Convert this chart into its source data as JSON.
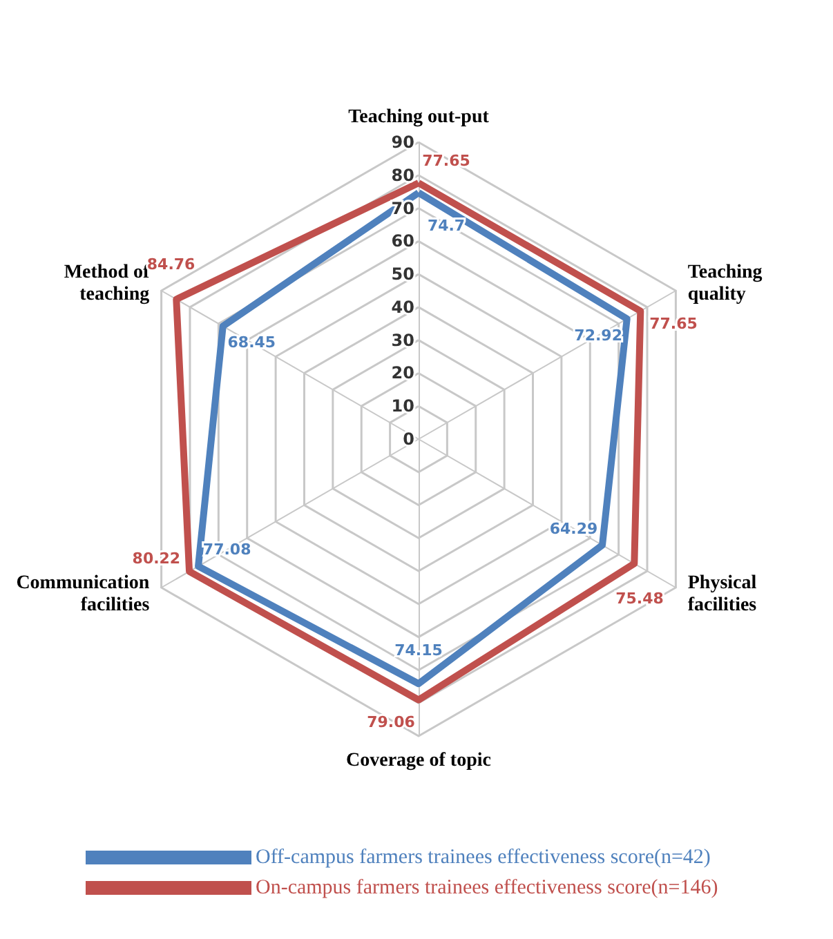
{
  "chart_data": {
    "type": "radar",
    "categories": [
      "Teaching out-put",
      "Teaching quality",
      "Physical facilities",
      "Coverage of topic",
      "Communication facilities",
      "Method of teaching"
    ],
    "ylim": [
      0,
      90
    ],
    "yticks": [
      0,
      10,
      20,
      30,
      40,
      50,
      60,
      70,
      80,
      90
    ],
    "data_labels": true,
    "legend": "bottom",
    "marker": "none",
    "series": [
      {
        "name": "Off-campus farmers trainees effectiveness score(n=42)",
        "color": "#4f81bd",
        "values": [
          74.7,
          72.92,
          64.29,
          74.15,
          77.08,
          68.45
        ]
      },
      {
        "name": "On-campus farmers trainees effectiveness score(n=146)",
        "color": "#c0504d",
        "values": [
          77.65,
          77.65,
          75.48,
          79.06,
          80.22,
          84.76
        ]
      }
    ]
  }
}
